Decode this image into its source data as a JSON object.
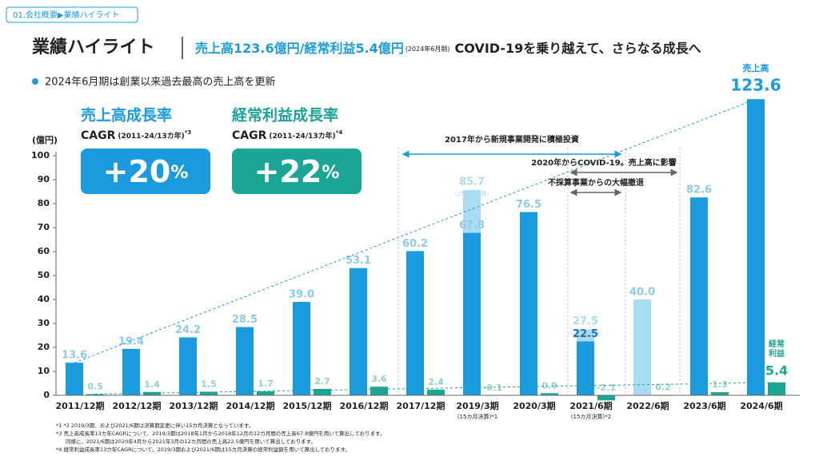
{
  "chart_data": {
    "type": "bar",
    "breadcrumb": "01.会社概要▶業績ハイライト",
    "title": "業績ハイライト",
    "subtitle": {
      "highlight": "売上高123.6億円/経常利益5.4億円",
      "period": "(2024年6月期)",
      "message": "COVID-19を乗り越えて、さらなる成長へ"
    },
    "bullet": "2024年6月期は創業以来過去最高の売上高を更新",
    "cagr": [
      {
        "heading": "売上高成長率",
        "label": "CAGR",
        "range": "(2011-24/13カ年)",
        "note": "*3",
        "value": "+20",
        "unit": "%",
        "color": "#1a9be0"
      },
      {
        "heading": "経常利益成長率",
        "label": "CAGR",
        "range": "(2011-24/13カ年)",
        "note": "*4",
        "value": "+22",
        "unit": "%",
        "color": "#1aa595"
      }
    ],
    "y_label": "(億円)",
    "ylim": [
      0,
      100
    ],
    "yticks": [
      0,
      10,
      20,
      30,
      40,
      50,
      60,
      70,
      80,
      90,
      100
    ],
    "categories": [
      "2011/12期",
      "2012/12期",
      "2013/12期",
      "2014/12期",
      "2015/12期",
      "2016/12期",
      "2017/12期",
      "2019/3期",
      "2020/3期",
      "2021/6期",
      "2022/6期",
      "2023/6期",
      "2024/6期"
    ],
    "category_notes": [
      null,
      null,
      null,
      null,
      null,
      null,
      null,
      "(15カ月決算)*1",
      null,
      "(15カ月決算)*2",
      null,
      null,
      null
    ],
    "series": [
      {
        "name": "売上高",
        "color": "#1a9be0",
        "colors": [
          "#1a9be0",
          "#1a9be0",
          "#1a9be0",
          "#1a9be0",
          "#1a9be0",
          "#1a9be0",
          "#1a9be0",
          "#1a9be0",
          "#1a9be0",
          "#1a9be0",
          "#a9dcf3",
          "#1a9be0",
          "#1a9be0"
        ],
        "values": [
          13.6,
          19.4,
          24.2,
          28.5,
          39.0,
          53.1,
          60.2,
          67.8,
          76.5,
          22.5,
          40.0,
          82.6,
          123.6
        ],
        "value_labels": [
          "13.6",
          "19.4",
          "24.2",
          "28.5",
          "39.0",
          "53.1",
          "60.2",
          "67.8",
          "76.5",
          "22.5",
          "40.0",
          "82.6",
          "123.6"
        ]
      },
      {
        "name": "(15カ月決算)",
        "color": "#a9dcf3",
        "values": [
          null,
          null,
          null,
          null,
          null,
          null,
          null,
          85.7,
          null,
          27.5,
          null,
          null,
          null
        ]
      },
      {
        "name": "経常利益",
        "color": "#1aa595",
        "values": [
          0.5,
          1.4,
          1.5,
          1.7,
          2.7,
          3.6,
          2.4,
          -0.1,
          0.9,
          -2.1,
          0.2,
          1.3,
          5.4
        ]
      }
    ],
    "annotations": [
      "2017年から新規事業開発に積極投資",
      "2020年からCOVID-19。売上高に影響",
      "不採算事業からの大幅撤退"
    ],
    "notes": [
      "*1 *2 2019/3期、および2021/6期は決算期変更に伴い15カ月決算となっています。",
      "*3 売上高成長率13カ年CAGRについて、2019/3期は2018年1月から2018年12月の12カ月間の売上高67.8億円を用いて算出しております。",
      "同様に、2021/6期は2020年4月から2021年3月の12カ月間の売上高22.5億円を用いて算出しております。",
      "*4 経常利益成長率13カ年CAGRについて、2019/3期および2021/6期は15カ月決算の経常利益額を用いて算出しております。"
    ]
  }
}
